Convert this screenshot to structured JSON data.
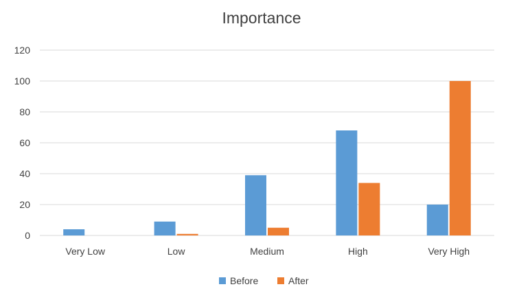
{
  "chart_data": {
    "type": "bar",
    "title": "Importance",
    "xlabel": "",
    "ylabel": "",
    "categories": [
      "Very Low",
      "Low",
      "Medium",
      "High",
      "Very High"
    ],
    "series": [
      {
        "name": "Before",
        "values": [
          4,
          9,
          39,
          68,
          20
        ]
      },
      {
        "name": "After",
        "values": [
          0,
          1,
          5,
          34,
          100
        ]
      }
    ],
    "ylim": [
      0,
      120
    ],
    "yticks": [
      0,
      20,
      40,
      60,
      80,
      100,
      120
    ],
    "grid": true,
    "legend_position": "bottom",
    "colors": {
      "Before": "#5b9bd5",
      "After": "#ed7d31"
    }
  }
}
